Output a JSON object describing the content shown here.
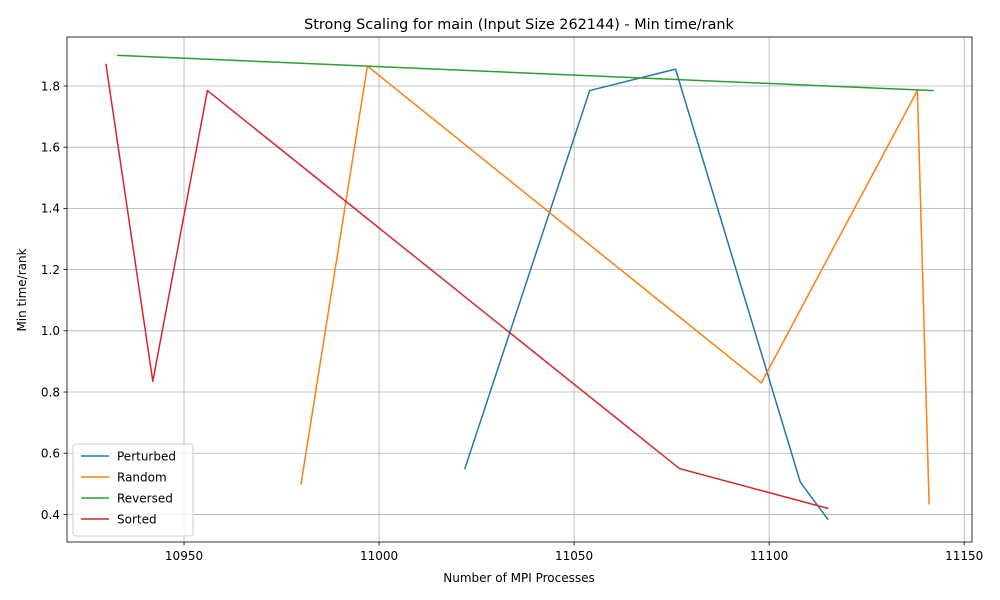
{
  "chart_data": {
    "type": "line",
    "title": "Strong Scaling for main (Input Size 262144) - Min time/rank",
    "xlabel": "Number of MPI Processes",
    "ylabel": "Min time/rank",
    "xlim": [
      10920,
      11152
    ],
    "ylim": [
      0.31,
      1.96
    ],
    "xticks": [
      10950,
      11000,
      11050,
      11100,
      11150
    ],
    "xtick_labels": [
      "10950",
      "11000",
      "11050",
      "11100",
      "11150"
    ],
    "yticks": [
      0.4,
      0.6,
      0.8,
      1.0,
      1.2,
      1.4,
      1.6,
      1.8
    ],
    "ytick_labels": [
      "0.4",
      "0.6",
      "0.8",
      "1.0",
      "1.2",
      "1.4",
      "1.6",
      "1.8"
    ],
    "grid": true,
    "legend_position": "lower-left",
    "series": [
      {
        "name": "Perturbed",
        "color": "#1f77b4",
        "x": [
          11022,
          11054,
          11076,
          11108,
          11115
        ],
        "y": [
          0.55,
          1.785,
          1.855,
          0.505,
          0.385
        ]
      },
      {
        "name": "Random",
        "color": "#ff7f0e",
        "x": [
          10980,
          10997,
          11098,
          11138,
          11141
        ],
        "y": [
          0.5,
          1.865,
          0.83,
          1.785,
          0.435
        ]
      },
      {
        "name": "Reversed",
        "color": "#2ca02c",
        "x": [
          10933,
          11142
        ],
        "y": [
          1.9,
          1.785
        ]
      },
      {
        "name": "Sorted",
        "color": "#d62728",
        "x": [
          10930,
          10942,
          10956,
          11077,
          11115
        ],
        "y": [
          1.87,
          0.835,
          1.785,
          0.55,
          0.42
        ]
      }
    ]
  }
}
